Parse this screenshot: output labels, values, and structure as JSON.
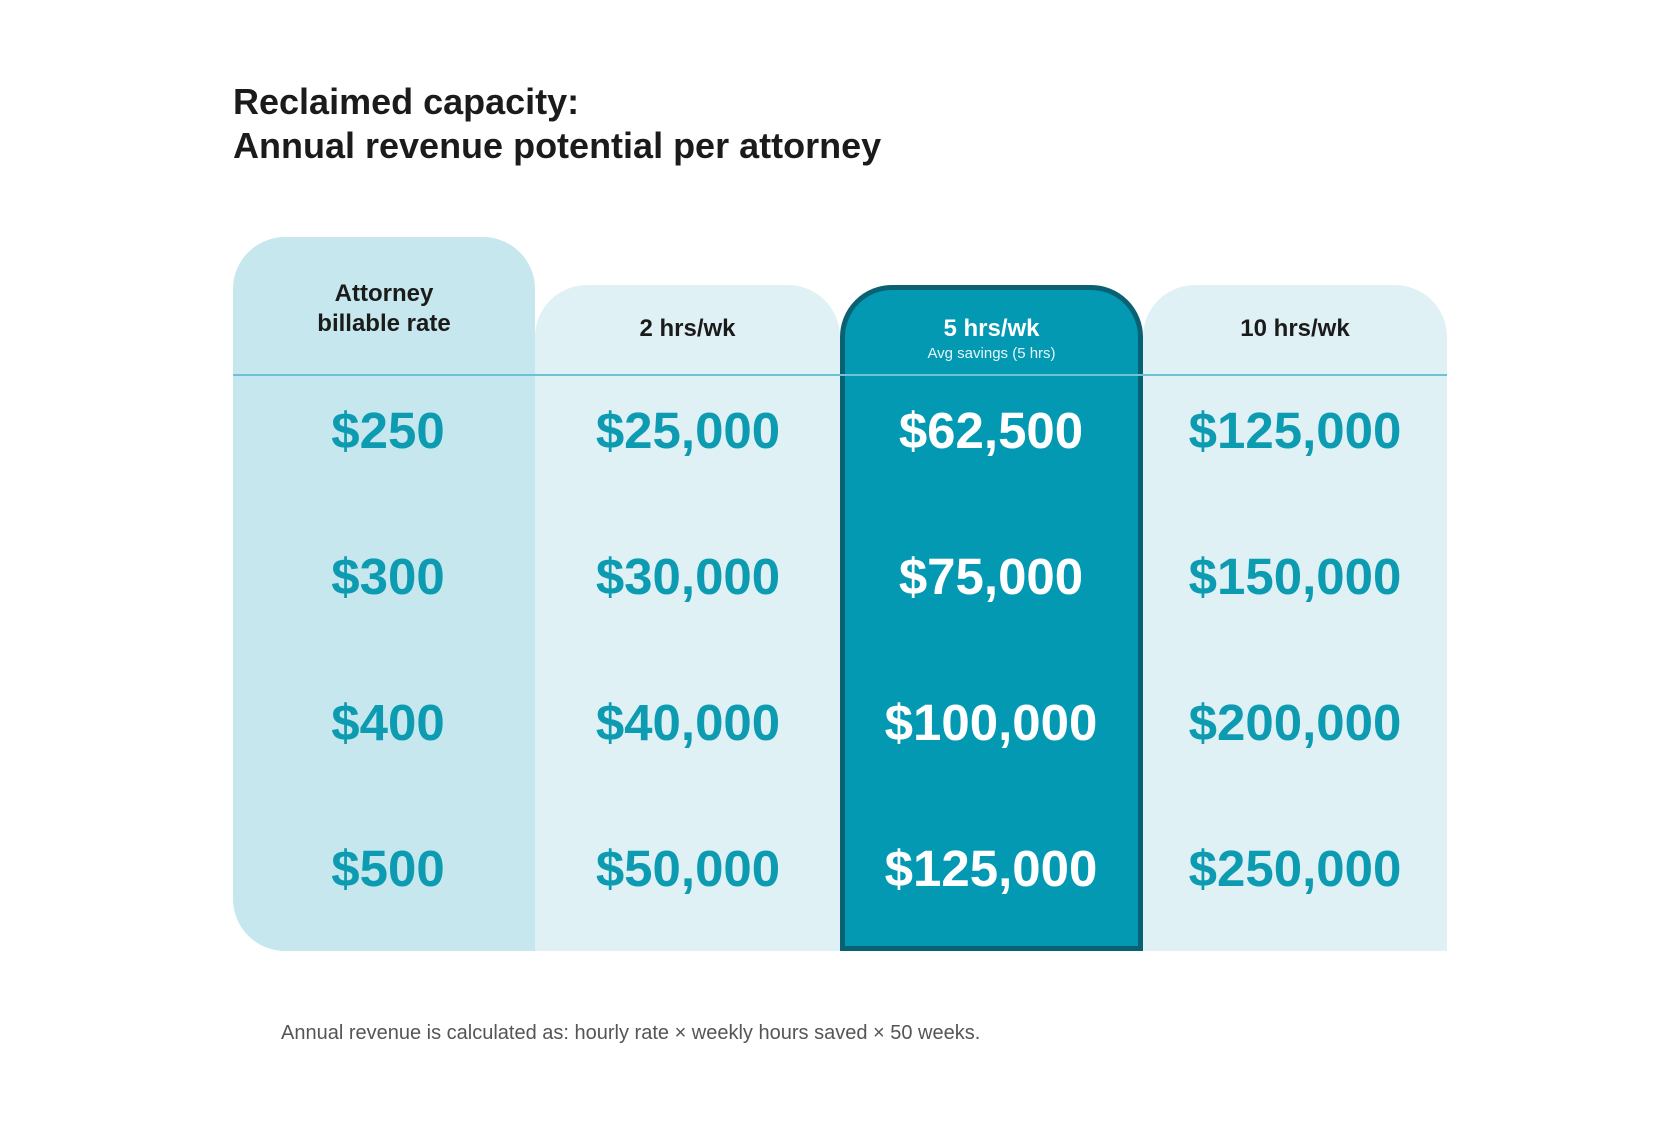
{
  "title": {
    "line1": "Reclaimed capacity:",
    "line2": "Annual revenue potential per attorney"
  },
  "table": {
    "columns": [
      {
        "label": [
          "Attorney",
          "billable rate"
        ]
      },
      {
        "label": [
          "2 hrs/wk"
        ]
      },
      {
        "label": [
          "5 hrs/wk"
        ],
        "note": "Avg savings (5 hrs)"
      },
      {
        "label": [
          "10 hrs/wk"
        ]
      }
    ],
    "rows": [
      [
        "$250",
        "$25,000",
        "$62,500",
        "$125,000"
      ],
      [
        "$300",
        "$30,000",
        "$75,000",
        "$150,000"
      ],
      [
        "$400",
        "$40,000",
        "$100,000",
        "$200,000"
      ],
      [
        "$500",
        "$50,000",
        "$125,000",
        "$250,000"
      ]
    ]
  },
  "footnote": "Annual revenue is calculated as: hourly rate × weekly hours saved × 50 weeks."
}
